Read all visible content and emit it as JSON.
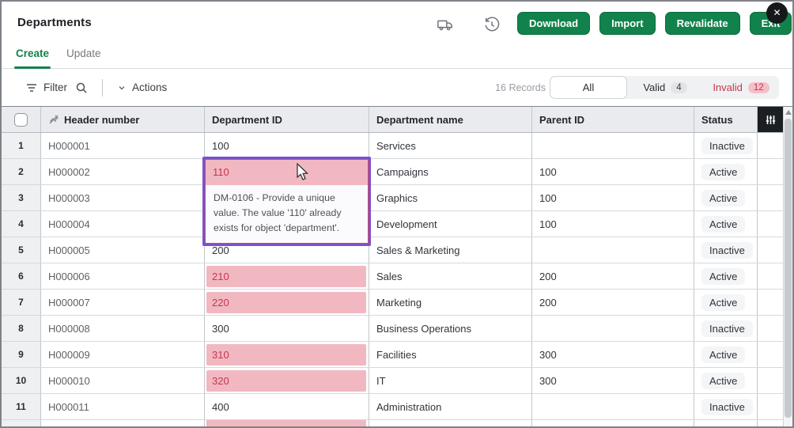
{
  "window": {
    "title": "Departments",
    "close_label": "✕"
  },
  "topbar": {
    "buttons": [
      {
        "label": "Download"
      },
      {
        "label": "Import"
      },
      {
        "label": "Revalidate"
      },
      {
        "label": "Exit"
      }
    ],
    "icons": [
      "truck-icon",
      "history-icon"
    ]
  },
  "tabs": [
    {
      "label": "Create",
      "active": true
    },
    {
      "label": "Update",
      "active": false
    }
  ],
  "toolbar": {
    "filter_label": "Filter",
    "actions_label": "Actions",
    "records_text": "16 Records",
    "segments": {
      "all_label": "All",
      "valid_label": "Valid",
      "valid_count": "4",
      "invalid_label": "Invalid",
      "invalid_count": "12"
    }
  },
  "table": {
    "columns": {
      "header_number": "Header number",
      "department_id": "Department ID",
      "department_name": "Department name",
      "parent_id": "Parent ID",
      "status": "Status"
    },
    "rows": [
      {
        "num": "1",
        "header_number": "H000001",
        "department_id": "100",
        "invalid": false,
        "department_name": "Services",
        "parent_id": "",
        "status": "Inactive"
      },
      {
        "num": "2",
        "header_number": "H000002",
        "department_id": "110",
        "invalid": true,
        "department_name": "Campaigns",
        "parent_id": "100",
        "status": "Active"
      },
      {
        "num": "3",
        "header_number": "H000003",
        "department_id": "",
        "invalid": false,
        "department_name": "Graphics",
        "parent_id": "100",
        "status": "Active"
      },
      {
        "num": "4",
        "header_number": "H000004",
        "department_id": "",
        "invalid": false,
        "department_name": "Development",
        "parent_id": "100",
        "status": "Active"
      },
      {
        "num": "5",
        "header_number": "H000005",
        "department_id": "200",
        "invalid": false,
        "department_name": "Sales & Marketing",
        "parent_id": "",
        "status": "Inactive"
      },
      {
        "num": "6",
        "header_number": "H000006",
        "department_id": "210",
        "invalid": true,
        "department_name": "Sales",
        "parent_id": "200",
        "status": "Active"
      },
      {
        "num": "7",
        "header_number": "H000007",
        "department_id": "220",
        "invalid": true,
        "department_name": "Marketing",
        "parent_id": "200",
        "status": "Active"
      },
      {
        "num": "8",
        "header_number": "H000008",
        "department_id": "300",
        "invalid": false,
        "department_name": "Business Operations",
        "parent_id": "",
        "status": "Inactive"
      },
      {
        "num": "9",
        "header_number": "H000009",
        "department_id": "310",
        "invalid": true,
        "department_name": "Facilities",
        "parent_id": "300",
        "status": "Active"
      },
      {
        "num": "10",
        "header_number": "H000010",
        "department_id": "320",
        "invalid": true,
        "department_name": "IT",
        "parent_id": "300",
        "status": "Active"
      },
      {
        "num": "11",
        "header_number": "H000011",
        "department_id": "400",
        "invalid": false,
        "department_name": "Administration",
        "parent_id": "",
        "status": "Inactive"
      }
    ],
    "partial_row": {
      "department_id": "",
      "invalid": true
    }
  },
  "error": {
    "value": "110",
    "message": "DM-0106 - Provide a unique value. The value '110' already exists for object 'department'."
  },
  "colors": {
    "accent_green": "#12824c",
    "invalid_red": "#c8354b",
    "invalid_pink": "#f2b8c2",
    "selection_purple": "#7a52cf"
  }
}
